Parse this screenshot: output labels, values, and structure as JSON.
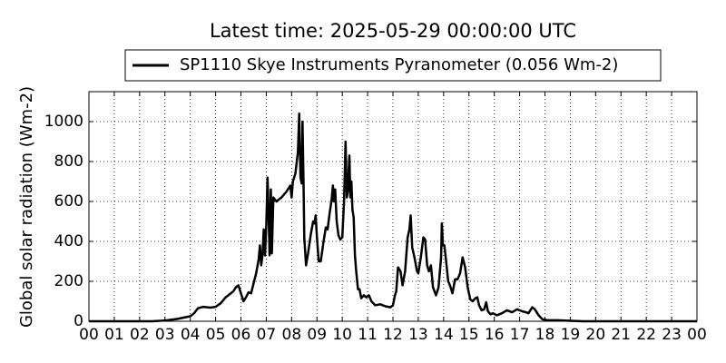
{
  "chart_data": {
    "type": "line",
    "title": "Latest time: 2025-05-29 00:00:00 UTC",
    "y_label": "Global solar radiation (Wm-2)",
    "legend_position": "top-center-outside",
    "grid": true,
    "xlim": [
      0,
      24
    ],
    "ylim": [
      0,
      1150
    ],
    "xticks": [
      {
        "value": 0,
        "label": "00"
      },
      {
        "value": 1,
        "label": "01"
      },
      {
        "value": 2,
        "label": "02"
      },
      {
        "value": 3,
        "label": "03"
      },
      {
        "value": 4,
        "label": "04"
      },
      {
        "value": 5,
        "label": "05"
      },
      {
        "value": 6,
        "label": "06"
      },
      {
        "value": 7,
        "label": "07"
      },
      {
        "value": 8,
        "label": "08"
      },
      {
        "value": 9,
        "label": "09"
      },
      {
        "value": 10,
        "label": "10"
      },
      {
        "value": 11,
        "label": "11"
      },
      {
        "value": 12,
        "label": "12"
      },
      {
        "value": 13,
        "label": "13"
      },
      {
        "value": 14,
        "label": "14"
      },
      {
        "value": 15,
        "label": "15"
      },
      {
        "value": 16,
        "label": "16"
      },
      {
        "value": 17,
        "label": "17"
      },
      {
        "value": 18,
        "label": "18"
      },
      {
        "value": 19,
        "label": "19"
      },
      {
        "value": 20,
        "label": "20"
      },
      {
        "value": 21,
        "label": "21"
      },
      {
        "value": 22,
        "label": "22"
      },
      {
        "value": 23,
        "label": "23"
      },
      {
        "value": 24,
        "label": "00"
      }
    ],
    "yticks": [
      0,
      200,
      400,
      600,
      800,
      1000
    ],
    "x": [
      0,
      2.5,
      2.8,
      3.1,
      3.5,
      3.8,
      4.0,
      4.15,
      4.3,
      4.5,
      4.8,
      5.0,
      5.2,
      5.4,
      5.55,
      5.7,
      5.8,
      5.9,
      6.0,
      6.1,
      6.2,
      6.3,
      6.4,
      6.5,
      6.6,
      6.7,
      6.75,
      6.8,
      6.85,
      6.9,
      6.95,
      7.0,
      7.05,
      7.1,
      7.13,
      7.18,
      7.22,
      7.28,
      7.4,
      7.6,
      7.8,
      7.95,
      8.0,
      8.05,
      8.15,
      8.25,
      8.3,
      8.35,
      8.4,
      8.43,
      8.47,
      8.5,
      8.57,
      8.65,
      8.75,
      8.85,
      8.9,
      8.95,
      9.0,
      9.07,
      9.15,
      9.25,
      9.35,
      9.42,
      9.5,
      9.58,
      9.63,
      9.67,
      9.72,
      9.78,
      9.85,
      9.92,
      10.0,
      10.07,
      10.13,
      10.18,
      10.22,
      10.28,
      10.32,
      10.36,
      10.4,
      10.45,
      10.5,
      10.55,
      10.62,
      10.68,
      10.75,
      10.85,
      10.95,
      11.05,
      11.15,
      11.3,
      11.5,
      11.7,
      11.9,
      12.0,
      12.08,
      12.13,
      12.2,
      12.3,
      12.38,
      12.48,
      12.58,
      12.65,
      12.7,
      12.76,
      12.85,
      12.95,
      13.0,
      13.1,
      13.2,
      13.27,
      13.35,
      13.42,
      13.5,
      13.58,
      13.7,
      13.8,
      13.9,
      13.93,
      13.97,
      14.03,
      14.1,
      14.18,
      14.25,
      14.35,
      14.45,
      14.55,
      14.65,
      14.75,
      14.85,
      14.95,
      15.05,
      15.15,
      15.25,
      15.33,
      15.4,
      15.5,
      15.6,
      15.68,
      15.75,
      15.85,
      15.95,
      16.1,
      16.3,
      16.5,
      16.7,
      16.9,
      17.1,
      17.25,
      17.35,
      17.5,
      17.6,
      17.75,
      17.9,
      18.1,
      18.5,
      19.0,
      19.5,
      24
    ],
    "series": [
      {
        "name": "SP1110 Skye Instruments Pyranometer (0.056 Wm-2)",
        "color": "#000000",
        "values": [
          0,
          0,
          2,
          5,
          12,
          20,
          25,
          40,
          65,
          72,
          68,
          72,
          90,
          120,
          135,
          150,
          170,
          180,
          140,
          100,
          120,
          145,
          140,
          190,
          240,
          310,
          380,
          280,
          330,
          460,
          330,
          480,
          720,
          500,
          330,
          660,
          340,
          620,
          600,
          620,
          650,
          680,
          620,
          700,
          740,
          850,
          1040,
          720,
          690,
          1000,
          700,
          420,
          280,
          340,
          430,
          500,
          490,
          530,
          420,
          300,
          300,
          390,
          470,
          460,
          540,
          610,
          680,
          600,
          660,
          500,
          430,
          410,
          420,
          600,
          900,
          620,
          650,
          830,
          620,
          700,
          560,
          520,
          330,
          250,
          160,
          160,
          115,
          130,
          120,
          130,
          100,
          80,
          85,
          75,
          70,
          80,
          130,
          150,
          270,
          250,
          180,
          250,
          420,
          460,
          530,
          370,
          320,
          250,
          240,
          320,
          420,
          410,
          280,
          250,
          280,
          170,
          130,
          170,
          320,
          490,
          380,
          380,
          300,
          200,
          180,
          140,
          210,
          210,
          240,
          320,
          270,
          170,
          110,
          100,
          115,
          120,
          80,
          55,
          60,
          95,
          50,
          35,
          40,
          30,
          40,
          55,
          45,
          60,
          50,
          45,
          40,
          70,
          60,
          30,
          10,
          5,
          5,
          2,
          0,
          0
        ]
      }
    ]
  }
}
